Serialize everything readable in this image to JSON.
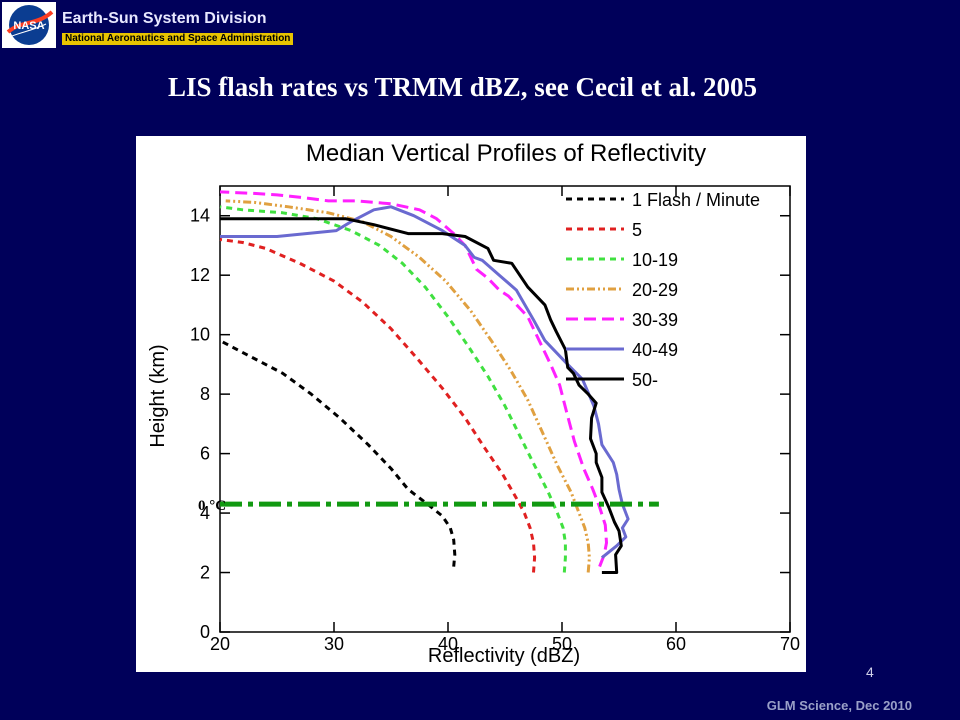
{
  "header": {
    "logo_text": "NASA",
    "division": "Earth-Sun System Division",
    "agency": "National Aeronautics and Space Administration"
  },
  "slide": {
    "title": "LIS flash rates vs TRMM dBZ, see Cecil et al. 2005",
    "page_number": "4",
    "footer": "GLM Science, Dec 2010"
  },
  "chart_data": {
    "type": "line",
    "title": "Median Vertical Profiles of Reflectivity",
    "xlabel": "Reflectivity (dBZ)",
    "ylabel": "Height (km)",
    "xlim": [
      20,
      70
    ],
    "ylim": [
      0,
      15
    ],
    "xticks": [
      20,
      30,
      40,
      50,
      60,
      70
    ],
    "yticks": [
      0,
      2,
      4,
      6,
      8,
      10,
      12,
      14
    ],
    "legend_position": "top-right",
    "series": [
      {
        "name": "1 Flash / Minute",
        "color": "#000000",
        "dash": "6,5",
        "points": [
          [
            40.5,
            2.2
          ],
          [
            40.6,
            2.6
          ],
          [
            40.5,
            3.1
          ],
          [
            40.2,
            3.5
          ],
          [
            39.5,
            3.9
          ],
          [
            38.2,
            4.3
          ],
          [
            36.5,
            4.8
          ],
          [
            35,
            5.5
          ],
          [
            33,
            6.3
          ],
          [
            30.5,
            7.2
          ],
          [
            28,
            8
          ],
          [
            25.5,
            8.7
          ],
          [
            23,
            9.2
          ],
          [
            21,
            9.6
          ],
          [
            20,
            9.8
          ]
        ]
      },
      {
        "name": "5",
        "color": "#e02020",
        "dash": "6,5",
        "points": [
          [
            47.5,
            2
          ],
          [
            47.6,
            2.5
          ],
          [
            47.5,
            3
          ],
          [
            47.2,
            3.5
          ],
          [
            46.7,
            4
          ],
          [
            46,
            4.5
          ],
          [
            44.8,
            5.3
          ],
          [
            43.2,
            6.2
          ],
          [
            41.5,
            7.2
          ],
          [
            39.5,
            8.2
          ],
          [
            37.3,
            9.2
          ],
          [
            35,
            10.2
          ],
          [
            32.5,
            11.1
          ],
          [
            30,
            11.8
          ],
          [
            27,
            12.4
          ],
          [
            24,
            12.9
          ],
          [
            22,
            13.1
          ],
          [
            20,
            13.2
          ]
        ]
      },
      {
        "name": "10-19",
        "color": "#40e040",
        "dash": "6,5",
        "points": [
          [
            50.2,
            2
          ],
          [
            50.3,
            2.5
          ],
          [
            50.3,
            3
          ],
          [
            50.1,
            3.5
          ],
          [
            49.6,
            4
          ],
          [
            48.8,
            4.7
          ],
          [
            47.6,
            5.6
          ],
          [
            46.3,
            6.6
          ],
          [
            45,
            7.6
          ],
          [
            43.5,
            8.6
          ],
          [
            41.8,
            9.6
          ],
          [
            40,
            10.6
          ],
          [
            38,
            11.6
          ],
          [
            36,
            12.4
          ],
          [
            34,
            13
          ],
          [
            31.5,
            13.5
          ],
          [
            28.5,
            13.9
          ],
          [
            25.5,
            14.1
          ],
          [
            22,
            14.2
          ],
          [
            20,
            14.3
          ]
        ]
      },
      {
        "name": "20-29",
        "color": "#e0a040",
        "dash": "8,3,2,3,2,3",
        "points": [
          [
            52.3,
            2
          ],
          [
            52.4,
            2.5
          ],
          [
            52.3,
            3
          ],
          [
            52,
            3.5
          ],
          [
            51.5,
            4
          ],
          [
            50.8,
            4.7
          ],
          [
            49.6,
            5.6
          ],
          [
            48.3,
            6.7
          ],
          [
            47,
            7.8
          ],
          [
            45.5,
            8.8
          ],
          [
            43.8,
            9.8
          ],
          [
            42,
            10.8
          ],
          [
            39.8,
            11.8
          ],
          [
            37.5,
            12.6
          ],
          [
            35,
            13.3
          ],
          [
            32.5,
            13.8
          ],
          [
            29.5,
            14.1
          ],
          [
            26,
            14.3
          ],
          [
            23,
            14.45
          ],
          [
            20.5,
            14.5
          ]
        ]
      },
      {
        "name": "30-39",
        "color": "#ff20ff",
        "dash": "12,6",
        "points": [
          [
            53.3,
            2.2
          ],
          [
            53.7,
            2.6
          ],
          [
            53.9,
            3
          ],
          [
            53.8,
            3.6
          ],
          [
            53.3,
            4.2
          ],
          [
            52.7,
            4.8
          ],
          [
            51.9,
            5.5
          ],
          [
            51.1,
            6.4
          ],
          [
            50.4,
            7.4
          ],
          [
            49.8,
            8.3
          ],
          [
            49,
            9
          ],
          [
            48,
            9.8
          ],
          [
            47,
            10.6
          ],
          [
            45.3,
            11.3
          ],
          [
            44.5,
            11.5
          ],
          [
            43.5,
            11.9
          ],
          [
            42.5,
            12.2
          ],
          [
            41.5,
            13
          ],
          [
            40.5,
            13.4
          ],
          [
            39,
            13.9
          ],
          [
            37.5,
            14.2
          ],
          [
            35,
            14.4
          ],
          [
            32,
            14.5
          ],
          [
            29.5,
            14.5
          ],
          [
            27.5,
            14.6
          ],
          [
            25,
            14.7
          ],
          [
            23,
            14.75
          ],
          [
            20,
            14.8
          ]
        ]
      },
      {
        "name": "40-49",
        "color": "#6a6ad0",
        "dash": "",
        "points": [
          [
            53.5,
            2.5
          ],
          [
            54.8,
            2.9
          ],
          [
            55.6,
            3.2
          ],
          [
            55.3,
            3.5
          ],
          [
            55.8,
            3.8
          ],
          [
            55.3,
            4.3
          ],
          [
            55.0,
            4.8
          ],
          [
            54.8,
            5.3
          ],
          [
            54.5,
            5.7
          ],
          [
            53.5,
            6.3
          ],
          [
            53.2,
            7.0
          ],
          [
            52.8,
            7.6
          ],
          [
            51.8,
            8.5
          ],
          [
            50.5,
            9.0
          ],
          [
            48.5,
            9.8
          ],
          [
            47.5,
            10.5
          ],
          [
            46.0,
            11.5
          ],
          [
            44.5,
            12.0
          ],
          [
            43.0,
            12.5
          ],
          [
            42.3,
            12.6
          ],
          [
            41.5,
            13.0
          ],
          [
            39.5,
            13.5
          ],
          [
            37.0,
            14.0
          ],
          [
            35.0,
            14.3
          ],
          [
            33.5,
            14.2
          ],
          [
            31.5,
            13.8
          ],
          [
            30.2,
            13.5
          ],
          [
            25.0,
            13.3
          ],
          [
            20.0,
            13.3
          ]
        ]
      },
      {
        "name": "50-",
        "color": "#000000",
        "dash": "",
        "points": [
          [
            53.5,
            2.0
          ],
          [
            54.8,
            2.0
          ],
          [
            54.7,
            2.6
          ],
          [
            55.2,
            2.9
          ],
          [
            55.0,
            3.4
          ],
          [
            54.6,
            3.7
          ],
          [
            54.1,
            4.2
          ],
          [
            53.5,
            4.7
          ],
          [
            53.5,
            5.2
          ],
          [
            53.0,
            5.7
          ],
          [
            53.0,
            6.0
          ],
          [
            52.5,
            6.5
          ],
          [
            52.6,
            7.2
          ],
          [
            53.0,
            7.7
          ],
          [
            52.3,
            8.0
          ],
          [
            51.5,
            8.3
          ],
          [
            51.0,
            8.7
          ],
          [
            50.5,
            8.9
          ],
          [
            50.3,
            9.5
          ],
          [
            49.5,
            10.1
          ],
          [
            49.0,
            10.5
          ],
          [
            48.5,
            11.0
          ],
          [
            47.0,
            11.6
          ],
          [
            45.6,
            12.4
          ],
          [
            44.0,
            12.5
          ],
          [
            43.5,
            12.9
          ],
          [
            41.5,
            13.3
          ],
          [
            39.5,
            13.4
          ],
          [
            36.5,
            13.4
          ],
          [
            33.5,
            13.7
          ],
          [
            31.0,
            13.9
          ],
          [
            28.0,
            13.9
          ],
          [
            20.0,
            13.9
          ]
        ]
      }
    ],
    "annotation": {
      "text": "0 °C",
      "height_km": 4.3,
      "x_from": 20,
      "x_to": 58.5,
      "color": "#119911"
    }
  }
}
